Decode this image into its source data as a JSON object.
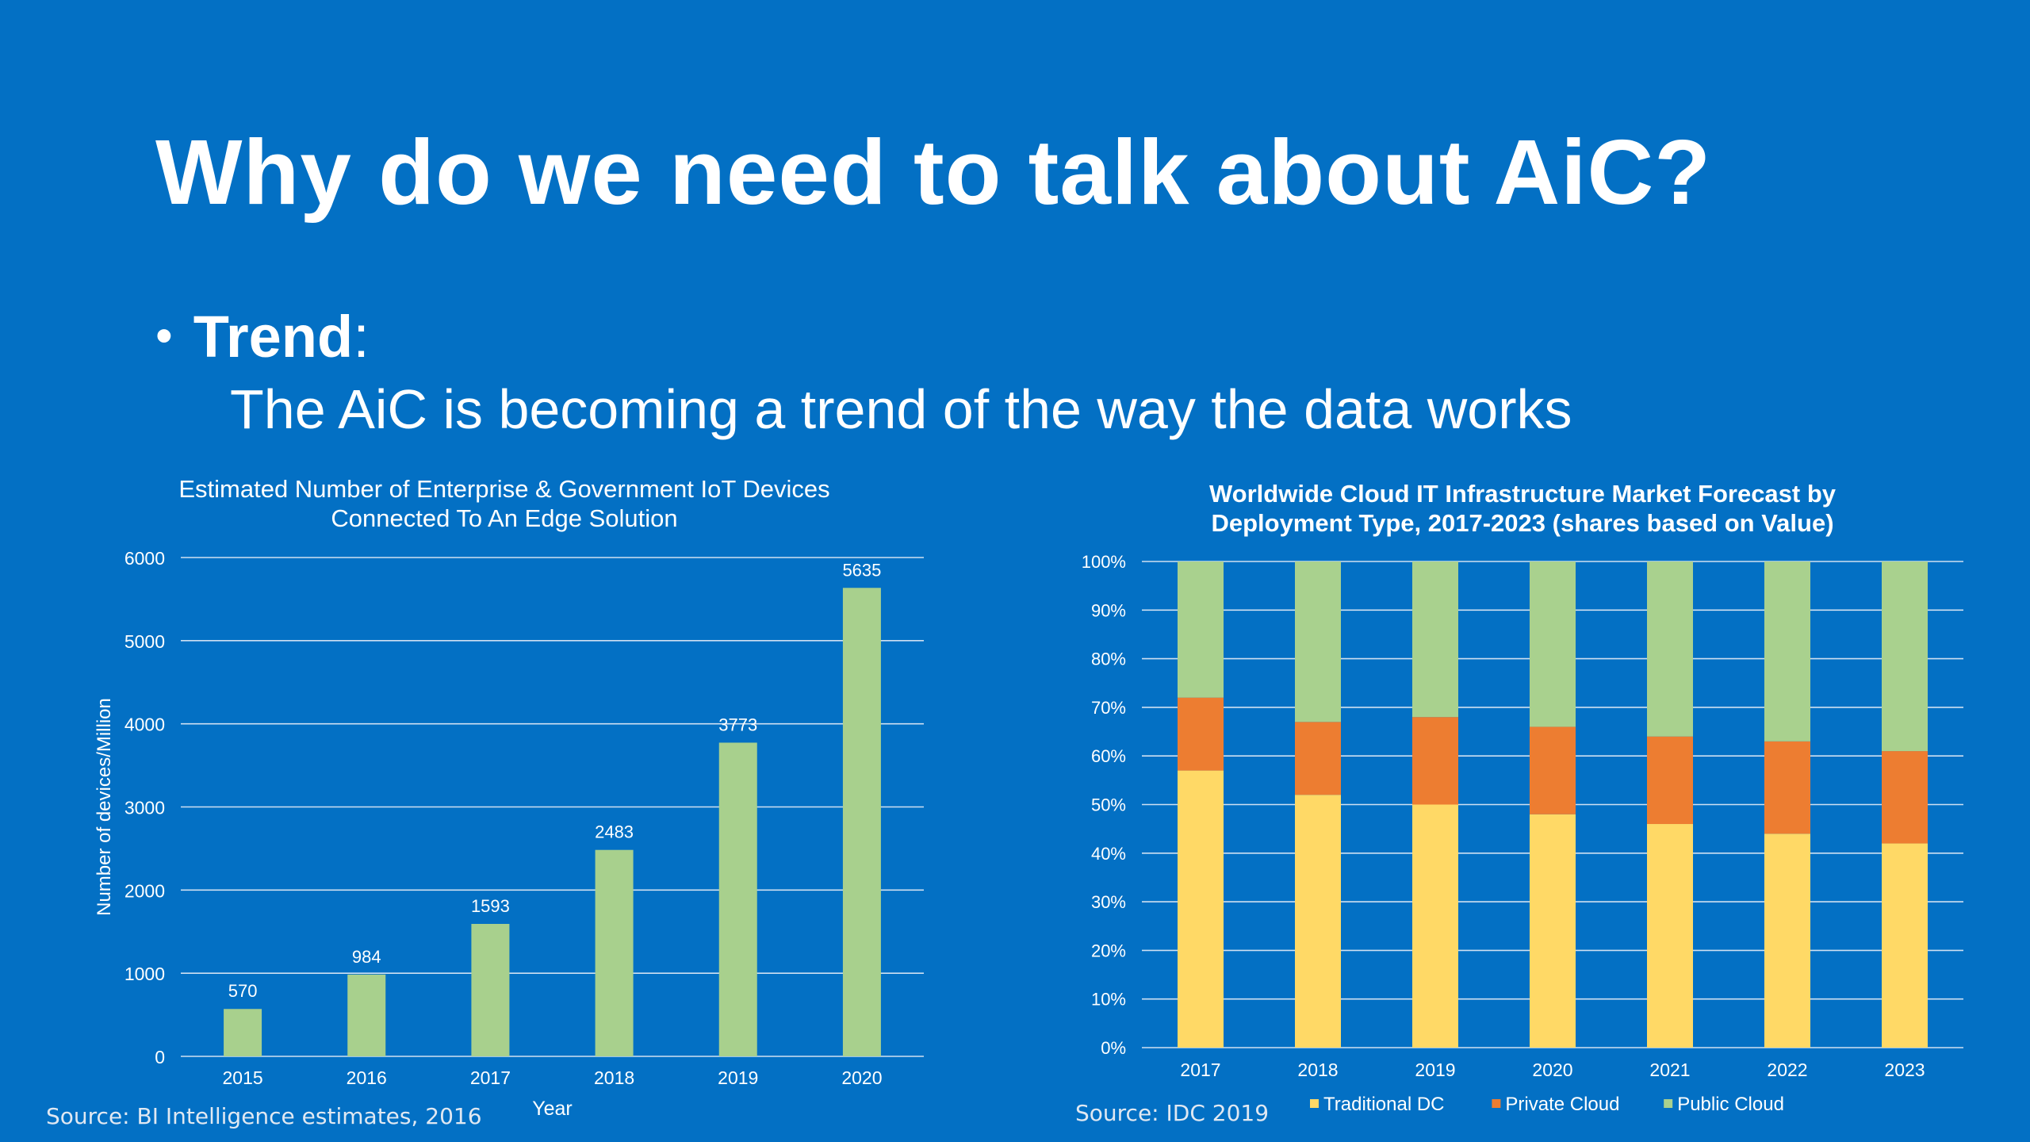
{
  "slide": {
    "title": "Why do we need to talk about AiC?",
    "bullet_label": "Trend",
    "bullet_colon": ":",
    "bullet_text": "The AiC is becoming a trend of the way the data works"
  },
  "chart_data": [
    {
      "type": "bar",
      "title": "Estimated Number of Enterprise & Government IoT Devices Connected To An Edge Solution",
      "title_line1": "Estimated Number of Enterprise & Government IoT Devices",
      "title_line2": "Connected To An Edge Solution",
      "xlabel": "Year",
      "ylabel": "Number of devices/Million",
      "categories": [
        "2015",
        "2016",
        "2017",
        "2018",
        "2019",
        "2020"
      ],
      "values": [
        570,
        984,
        1593,
        2483,
        3773,
        5635
      ],
      "ylim": [
        0,
        6000
      ],
      "yticks": [
        0,
        1000,
        2000,
        3000,
        4000,
        5000,
        6000
      ],
      "grid": true,
      "data_labels": true,
      "bar_color": "#A8D08D",
      "source": "Source: BI Intelligence estimates, 2016"
    },
    {
      "type": "bar",
      "stacked": "100%",
      "title": "Worldwide Cloud IT Infrastructure Market Forecast by Deployment Type, 2017-2023 (shares based on Value)",
      "title_line1": "Worldwide Cloud IT Infrastructure Market Forecast by",
      "title_line2": "Deployment Type, 2017-2023 (shares based on Value)",
      "categories": [
        "2017",
        "2018",
        "2019",
        "2020",
        "2021",
        "2022",
        "2023"
      ],
      "series": [
        {
          "name": "Traditional DC",
          "color": "#FFD966",
          "values": [
            57,
            52,
            50,
            48,
            46,
            44,
            42
          ]
        },
        {
          "name": "Private Cloud",
          "color": "#ED7D31",
          "values": [
            15,
            15,
            18,
            18,
            18,
            19,
            19
          ]
        },
        {
          "name": "Public Cloud",
          "color": "#A9D18E",
          "values": [
            28,
            33,
            32,
            34,
            36,
            37,
            39
          ]
        }
      ],
      "ylim": [
        0,
        100
      ],
      "ytick_labels": [
        "0%",
        "10%",
        "20%",
        "30%",
        "40%",
        "50%",
        "60%",
        "70%",
        "80%",
        "90%",
        "100%"
      ],
      "grid": true,
      "legend": "bottom",
      "source": "Source: IDC 2019"
    }
  ]
}
